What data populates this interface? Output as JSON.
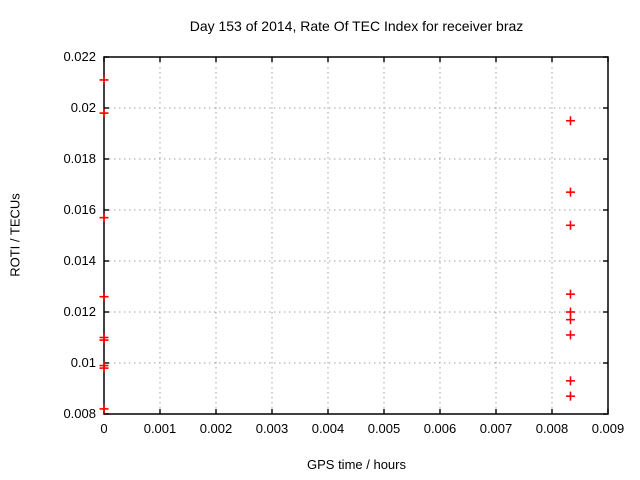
{
  "window": {
    "background": "#ffffff"
  },
  "chart_data": {
    "type": "scatter",
    "title": "Day 153 of 2014, Rate Of TEC Index for receiver braz",
    "xlabel": "GPS time / hours",
    "ylabel": "ROTI / TECUs",
    "xlim": [
      0,
      0.009
    ],
    "ylim": [
      0.008,
      0.022
    ],
    "xticks": {
      "values": [
        0,
        0.001,
        0.002,
        0.003,
        0.004,
        0.005,
        0.006,
        0.007,
        0.008,
        0.009
      ],
      "labels": [
        "0",
        "0.001",
        "0.002",
        "0.003",
        "0.004",
        "0.005",
        "0.006",
        "0.007",
        "0.008",
        "0.009"
      ]
    },
    "yticks": {
      "values": [
        0.008,
        0.01,
        0.012,
        0.014,
        0.016,
        0.018,
        0.02,
        0.022
      ],
      "labels": [
        "0.008",
        "0.01",
        "0.012",
        "0.014",
        "0.016",
        "0.018",
        "0.02",
        "0.022"
      ]
    },
    "grid": {
      "style": "dotted",
      "color": "#a0a0a0"
    },
    "border_color": "#000000",
    "legend": "none",
    "marker": {
      "shape": "plus",
      "color": "#ff0000",
      "size": 9
    },
    "series": [
      {
        "name": "ROTI",
        "color": "#ff0000",
        "points": [
          [
            0,
            0.0211
          ],
          [
            0,
            0.0198
          ],
          [
            0,
            0.0157
          ],
          [
            0,
            0.0126
          ],
          [
            0,
            0.011
          ],
          [
            0,
            0.0109
          ],
          [
            0,
            0.0099
          ],
          [
            0,
            0.0098
          ],
          [
            0,
            0.0082
          ],
          [
            0.00833,
            0.0195
          ],
          [
            0.00833,
            0.0167
          ],
          [
            0.00833,
            0.0154
          ],
          [
            0.00833,
            0.0127
          ],
          [
            0.00833,
            0.012
          ],
          [
            0.00833,
            0.0117
          ],
          [
            0.00833,
            0.0111
          ],
          [
            0.00833,
            0.0093
          ],
          [
            0.00833,
            0.0087
          ]
        ]
      }
    ]
  }
}
